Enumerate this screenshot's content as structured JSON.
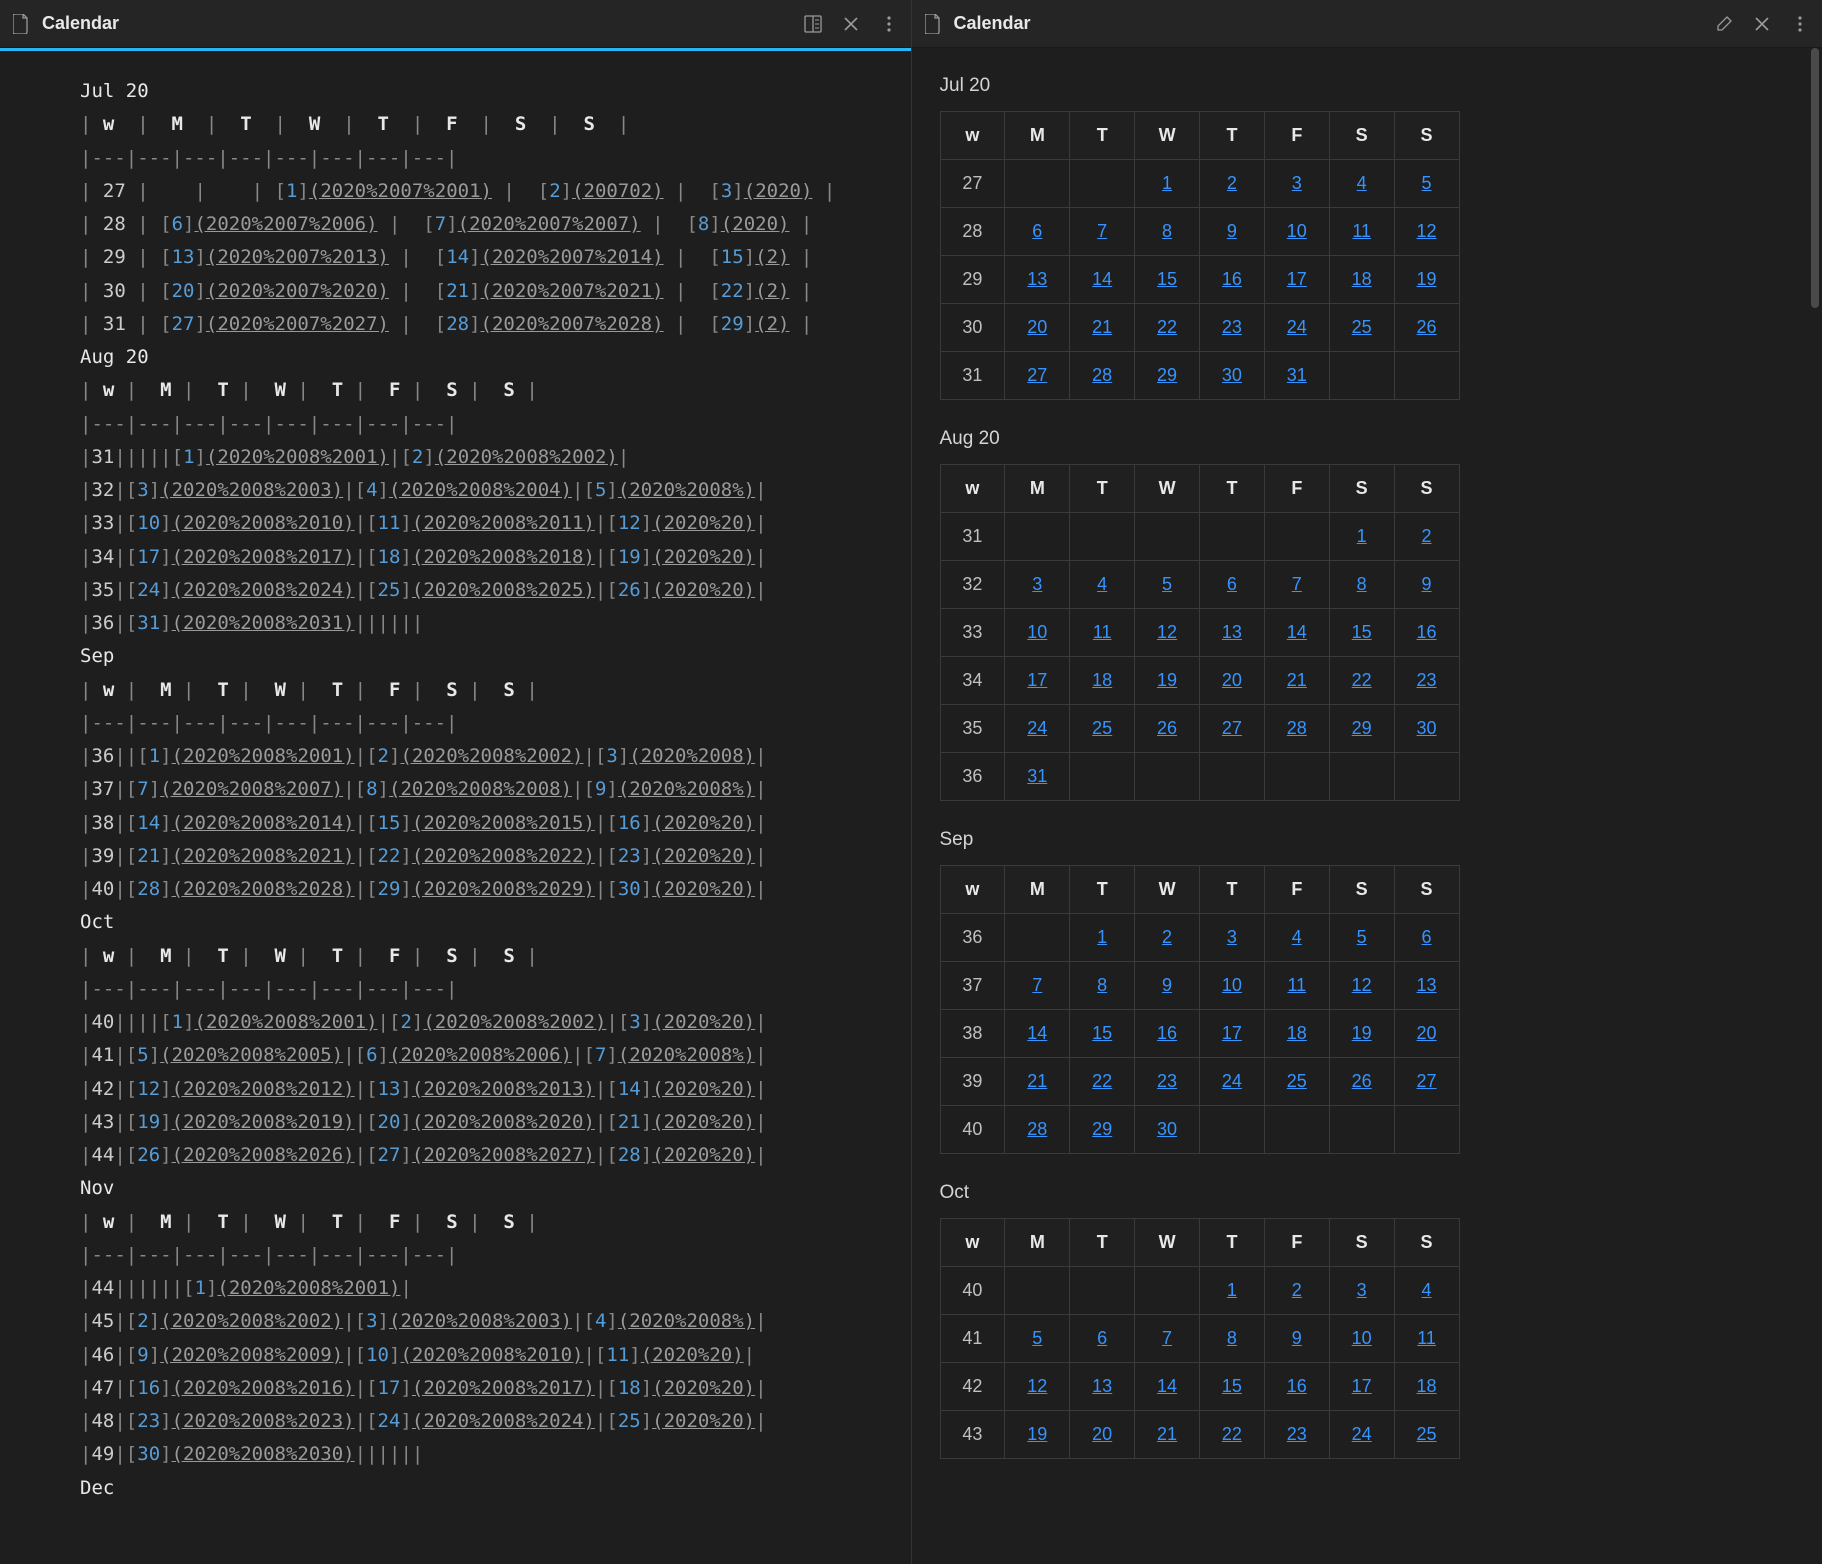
{
  "left": {
    "title": "Calendar",
    "icons": {
      "doc": "doc",
      "preview": "preview-toggle",
      "close": "close",
      "more": "more"
    }
  },
  "right": {
    "title": "Calendar",
    "icons": {
      "doc": "doc",
      "edit": "edit",
      "close": "close",
      "more": "more"
    }
  },
  "colors": {
    "background": "#1e1e1e",
    "titlebar": "#252526",
    "accent": "#29b6f6",
    "link": "#3794ff",
    "source_num": "#569cd6",
    "source_link": "#9a9a9a",
    "border": "#3a3a3a",
    "text": "#d4d4d4"
  },
  "day_headers": [
    "w",
    "M",
    "T",
    "W",
    "T",
    "F",
    "S",
    "S"
  ],
  "months": [
    {
      "label": "Jul 20",
      "src_label": "Jul 20",
      "link_prefix": "2020%2007%20",
      "weeks": [
        {
          "w": "27",
          "days": [
            "",
            "",
            "1",
            "2",
            "3",
            "4",
            "5"
          ]
        },
        {
          "w": "28",
          "days": [
            "6",
            "7",
            "8",
            "9",
            "10",
            "11",
            "12"
          ]
        },
        {
          "w": "29",
          "days": [
            "13",
            "14",
            "15",
            "16",
            "17",
            "18",
            "19"
          ]
        },
        {
          "w": "30",
          "days": [
            "20",
            "21",
            "22",
            "23",
            "24",
            "25",
            "26"
          ]
        },
        {
          "w": "31",
          "days": [
            "27",
            "28",
            "29",
            "30",
            "31",
            "",
            ""
          ]
        }
      ],
      "src_weeks": [
        {
          "w": "27",
          "cells": [
            null,
            null,
            {
              "n": "1",
              "l": "2020%2007%2001"
            },
            {
              "n": "2",
              "l": "200702"
            },
            {
              "n": "3",
              "l": "2020"
            }
          ]
        },
        {
          "w": "28",
          "cells": [
            {
              "n": "6",
              "l": "2020%2007%2006"
            },
            {
              "n": "7",
              "l": "2020%2007%2007"
            },
            {
              "n": "8",
              "l": "2020"
            }
          ]
        },
        {
          "w": "29",
          "cells": [
            {
              "n": "13",
              "l": "2020%2007%2013"
            },
            {
              "n": "14",
              "l": "2020%2007%2014"
            },
            {
              "n": "15",
              "l": "2"
            }
          ]
        },
        {
          "w": "30",
          "cells": [
            {
              "n": "20",
              "l": "2020%2007%2020"
            },
            {
              "n": "21",
              "l": "2020%2007%2021"
            },
            {
              "n": "22",
              "l": "2"
            }
          ]
        },
        {
          "w": "31",
          "cells": [
            {
              "n": "27",
              "l": "2020%2007%2027"
            },
            {
              "n": "28",
              "l": "2020%2007%2028"
            },
            {
              "n": "29",
              "l": "2"
            }
          ]
        }
      ]
    },
    {
      "label": "Aug 20",
      "src_label": "Aug 20",
      "link_prefix": "2020%2008%20",
      "weeks": [
        {
          "w": "31",
          "days": [
            "",
            "",
            "",
            "",
            "",
            "1",
            "2"
          ]
        },
        {
          "w": "32",
          "days": [
            "3",
            "4",
            "5",
            "6",
            "7",
            "8",
            "9"
          ]
        },
        {
          "w": "33",
          "days": [
            "10",
            "11",
            "12",
            "13",
            "14",
            "15",
            "16"
          ]
        },
        {
          "w": "34",
          "days": [
            "17",
            "18",
            "19",
            "20",
            "21",
            "22",
            "23"
          ]
        },
        {
          "w": "35",
          "days": [
            "24",
            "25",
            "26",
            "27",
            "28",
            "29",
            "30"
          ]
        },
        {
          "w": "36",
          "days": [
            "31",
            "",
            "",
            "",
            "",
            "",
            ""
          ]
        }
      ],
      "src_weeks": [
        {
          "w": "31",
          "cells": [
            null,
            null,
            null,
            null,
            {
              "n": "1",
              "l": "2020%2008%2001"
            },
            {
              "n": "2",
              "l": "2020%2008%2002"
            }
          ],
          "tight": true
        },
        {
          "w": "32",
          "cells": [
            {
              "n": "3",
              "l": "2020%2008%2003"
            },
            {
              "n": "4",
              "l": "2020%2008%2004"
            },
            {
              "n": "5",
              "l": "2020%2008%"
            }
          ],
          "tight": true
        },
        {
          "w": "33",
          "cells": [
            {
              "n": "10",
              "l": "2020%2008%2010"
            },
            {
              "n": "11",
              "l": "2020%2008%2011"
            },
            {
              "n": "12",
              "l": "2020%20"
            }
          ],
          "tight": true
        },
        {
          "w": "34",
          "cells": [
            {
              "n": "17",
              "l": "2020%2008%2017"
            },
            {
              "n": "18",
              "l": "2020%2008%2018"
            },
            {
              "n": "19",
              "l": "2020%20"
            }
          ],
          "tight": true
        },
        {
          "w": "35",
          "cells": [
            {
              "n": "24",
              "l": "2020%2008%2024"
            },
            {
              "n": "25",
              "l": "2020%2008%2025"
            },
            {
              "n": "26",
              "l": "2020%20"
            }
          ],
          "tight": true
        },
        {
          "w": "36",
          "cells": [
            {
              "n": "31",
              "l": "2020%2008%2031"
            }
          ],
          "tight": true,
          "trail": 5
        }
      ]
    },
    {
      "label": "Sep",
      "src_label": "Sep",
      "link_prefix": "2020%2008%20",
      "weeks": [
        {
          "w": "36",
          "days": [
            "",
            "1",
            "2",
            "3",
            "4",
            "5",
            "6"
          ]
        },
        {
          "w": "37",
          "days": [
            "7",
            "8",
            "9",
            "10",
            "11",
            "12",
            "13"
          ]
        },
        {
          "w": "38",
          "days": [
            "14",
            "15",
            "16",
            "17",
            "18",
            "19",
            "20"
          ]
        },
        {
          "w": "39",
          "days": [
            "21",
            "22",
            "23",
            "24",
            "25",
            "26",
            "27"
          ]
        },
        {
          "w": "40",
          "days": [
            "28",
            "29",
            "30",
            "",
            "",
            "",
            ""
          ]
        }
      ],
      "src_weeks": [
        {
          "w": "36",
          "cells": [
            null,
            {
              "n": "1",
              "l": "2020%2008%2001"
            },
            {
              "n": "2",
              "l": "2020%2008%2002"
            },
            {
              "n": "3",
              "l": "2020%2008"
            }
          ],
          "tight": true
        },
        {
          "w": "37",
          "cells": [
            {
              "n": "7",
              "l": "2020%2008%2007"
            },
            {
              "n": "8",
              "l": "2020%2008%2008"
            },
            {
              "n": "9",
              "l": "2020%2008%"
            }
          ],
          "tight": true
        },
        {
          "w": "38",
          "cells": [
            {
              "n": "14",
              "l": "2020%2008%2014"
            },
            {
              "n": "15",
              "l": "2020%2008%2015"
            },
            {
              "n": "16",
              "l": "2020%20"
            }
          ],
          "tight": true
        },
        {
          "w": "39",
          "cells": [
            {
              "n": "21",
              "l": "2020%2008%2021"
            },
            {
              "n": "22",
              "l": "2020%2008%2022"
            },
            {
              "n": "23",
              "l": "2020%20"
            }
          ],
          "tight": true
        },
        {
          "w": "40",
          "cells": [
            {
              "n": "28",
              "l": "2020%2008%2028"
            },
            {
              "n": "29",
              "l": "2020%2008%2029"
            },
            {
              "n": "30",
              "l": "2020%20"
            }
          ],
          "tight": true
        }
      ]
    },
    {
      "label": "Oct",
      "src_label": "Oct",
      "link_prefix": "2020%2008%20",
      "weeks": [
        {
          "w": "40",
          "days": [
            "",
            "",
            "",
            "1",
            "2",
            "3",
            "4"
          ]
        },
        {
          "w": "41",
          "days": [
            "5",
            "6",
            "7",
            "8",
            "9",
            "10",
            "11"
          ]
        },
        {
          "w": "42",
          "days": [
            "12",
            "13",
            "14",
            "15",
            "16",
            "17",
            "18"
          ]
        },
        {
          "w": "43",
          "days": [
            "19",
            "20",
            "21",
            "22",
            "23",
            "24",
            "25"
          ]
        }
      ],
      "src_weeks": [
        {
          "w": "40",
          "cells": [
            null,
            null,
            null,
            {
              "n": "1",
              "l": "2020%2008%2001"
            },
            {
              "n": "2",
              "l": "2020%2008%2002"
            },
            {
              "n": "3",
              "l": "2020%20"
            }
          ],
          "tight": true
        },
        {
          "w": "41",
          "cells": [
            {
              "n": "5",
              "l": "2020%2008%2005"
            },
            {
              "n": "6",
              "l": "2020%2008%2006"
            },
            {
              "n": "7",
              "l": "2020%2008%"
            }
          ],
          "tight": true
        },
        {
          "w": "42",
          "cells": [
            {
              "n": "12",
              "l": "2020%2008%2012"
            },
            {
              "n": "13",
              "l": "2020%2008%2013"
            },
            {
              "n": "14",
              "l": "2020%20"
            }
          ],
          "tight": true
        },
        {
          "w": "43",
          "cells": [
            {
              "n": "19",
              "l": "2020%2008%2019"
            },
            {
              "n": "20",
              "l": "2020%2008%2020"
            },
            {
              "n": "21",
              "l": "2020%20"
            }
          ],
          "tight": true
        },
        {
          "w": "44",
          "cells": [
            {
              "n": "26",
              "l": "2020%2008%2026"
            },
            {
              "n": "27",
              "l": "2020%2008%2027"
            },
            {
              "n": "28",
              "l": "2020%20"
            }
          ],
          "tight": true
        }
      ]
    },
    {
      "label": "Nov",
      "src_label": "Nov",
      "link_prefix": "2020%2008%20",
      "weeks": [],
      "src_weeks": [
        {
          "w": "44",
          "cells": [
            null,
            null,
            null,
            null,
            null,
            {
              "n": "1",
              "l": "2020%2008%2001"
            }
          ],
          "tight": true
        },
        {
          "w": "45",
          "cells": [
            {
              "n": "2",
              "l": "2020%2008%2002"
            },
            {
              "n": "3",
              "l": "2020%2008%2003"
            },
            {
              "n": "4",
              "l": "2020%2008%"
            }
          ],
          "tight": true
        },
        {
          "w": "46",
          "cells": [
            {
              "n": "9",
              "l": "2020%2008%2009"
            },
            {
              "n": "10",
              "l": "2020%2008%2010"
            },
            {
              "n": "11",
              "l": "2020%20"
            }
          ],
          "tight": true
        },
        {
          "w": "47",
          "cells": [
            {
              "n": "16",
              "l": "2020%2008%2016"
            },
            {
              "n": "17",
              "l": "2020%2008%2017"
            },
            {
              "n": "18",
              "l": "2020%20"
            }
          ],
          "tight": true
        },
        {
          "w": "48",
          "cells": [
            {
              "n": "23",
              "l": "2020%2008%2023"
            },
            {
              "n": "24",
              "l": "2020%2008%2024"
            },
            {
              "n": "25",
              "l": "2020%20"
            }
          ],
          "tight": true
        },
        {
          "w": "49",
          "cells": [
            {
              "n": "30",
              "l": "2020%2008%2030"
            }
          ],
          "tight": true,
          "trail": 5
        }
      ]
    },
    {
      "label": "Dec",
      "src_label": "Dec",
      "link_prefix": "2020%2008%20",
      "weeks": [],
      "src_weeks": []
    }
  ],
  "source": {
    "header_sep": "|---|---|---|---|---|---|---|---|",
    "header_row_wide": "| w  |  M  |  T  |  W  |  T  |  F  |  S  |  S  |",
    "header_row_tight": "| w |  M |  T |  W |  T |  F |  S |  S |"
  }
}
